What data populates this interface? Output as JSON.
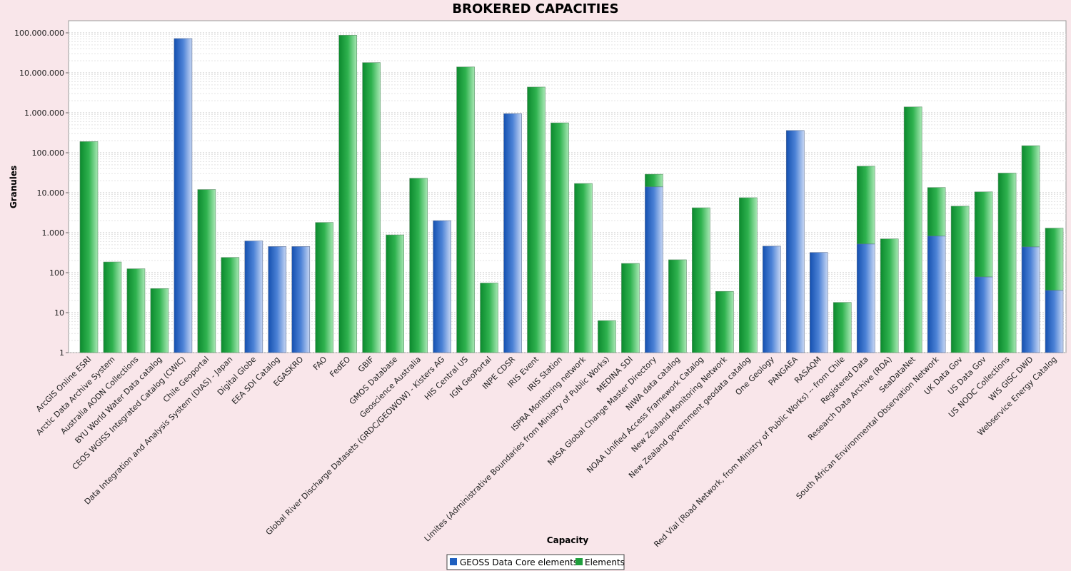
{
  "chart_data": {
    "type": "bar",
    "title": "BROKERED CAPACITIES",
    "xlabel": "Capacity",
    "ylabel": "Granules",
    "yscale": "log",
    "ylim": [
      1,
      100000000
    ],
    "y_ticks": [
      "1",
      "10",
      "100",
      "1.000",
      "10.000",
      "100.000",
      "1.000.000",
      "10.000.000",
      "100.000.000"
    ],
    "grid": true,
    "legend_position": "bottom",
    "stacked": true,
    "categories": [
      "ArcGIS Online ESRI",
      "Arctic Data Archive System",
      "Australia AODN Collections",
      "BYU World Water Data catalog",
      "CEOS WGISS Integrated Catalog (CWIC)",
      "Chile Geoportal",
      "Data Integration and Analysis System (DIAS) - Japan",
      "Digital Globe",
      "EEA SDI Catalog",
      "EGASKRO",
      "FAO",
      "FedEO",
      "GBIF",
      "GMOS Database",
      "Geoscience Australia",
      "Global River Discharge Datasets (GRDC/GEOWOW) - Kisters AG",
      "HIS Central US",
      "IGN GeoPortal",
      "INPE CDSR",
      "IRIS Event",
      "IRIS Station",
      "ISPRA Monitoring network",
      "Limites (Administrative Boundaries from Ministry of Public Works)",
      "MEDINA SDI",
      "NASA Global Change Master Directory",
      "NIWA data catalog",
      "NOAA Unified Access Framework Catalog",
      "New Zealand Monitoring Network",
      "New Zealand government geodata catalog",
      "One Geology",
      "PANGAEA",
      "RASAQM",
      "Red Vial (Road Network, from Ministry of Public Works) -- from Chile",
      "Registered Data",
      "Research Data Archive (RDA)",
      "SeaDataNet",
      "South African Environmental Observation Network",
      "UK Data Gov",
      "US Data Gov",
      "US NODC Collections",
      "WIS GISC DWD",
      "Webservice Energy Catalog"
    ],
    "series": [
      {
        "name": "GEOSS Data Core elements",
        "color": "#1f5fbf",
        "values": [
          0,
          0,
          0,
          0,
          72000000,
          0,
          0,
          620,
          450,
          450,
          0,
          0,
          0,
          0,
          0,
          2000,
          0,
          0,
          950000,
          0,
          0,
          0,
          0,
          0,
          14000,
          0,
          0,
          0,
          0,
          460,
          360000,
          320,
          0,
          520,
          0,
          0,
          820,
          0,
          78,
          0,
          440,
          36
        ]
      },
      {
        "name": "Elements",
        "color": "#1f9e3c",
        "values": [
          190000,
          185,
          125,
          40,
          72000000,
          12000,
          240,
          620,
          450,
          450,
          1800,
          87000000,
          18000000,
          880,
          23000,
          2000,
          14000000,
          55,
          950000,
          4400000,
          560000,
          17000,
          6.3,
          170,
          29000,
          210,
          4200,
          34,
          7500,
          460,
          360000,
          320,
          18,
          46000,
          700,
          1400000,
          13500,
          4600,
          10500,
          31000,
          150000,
          1300
        ]
      }
    ]
  }
}
